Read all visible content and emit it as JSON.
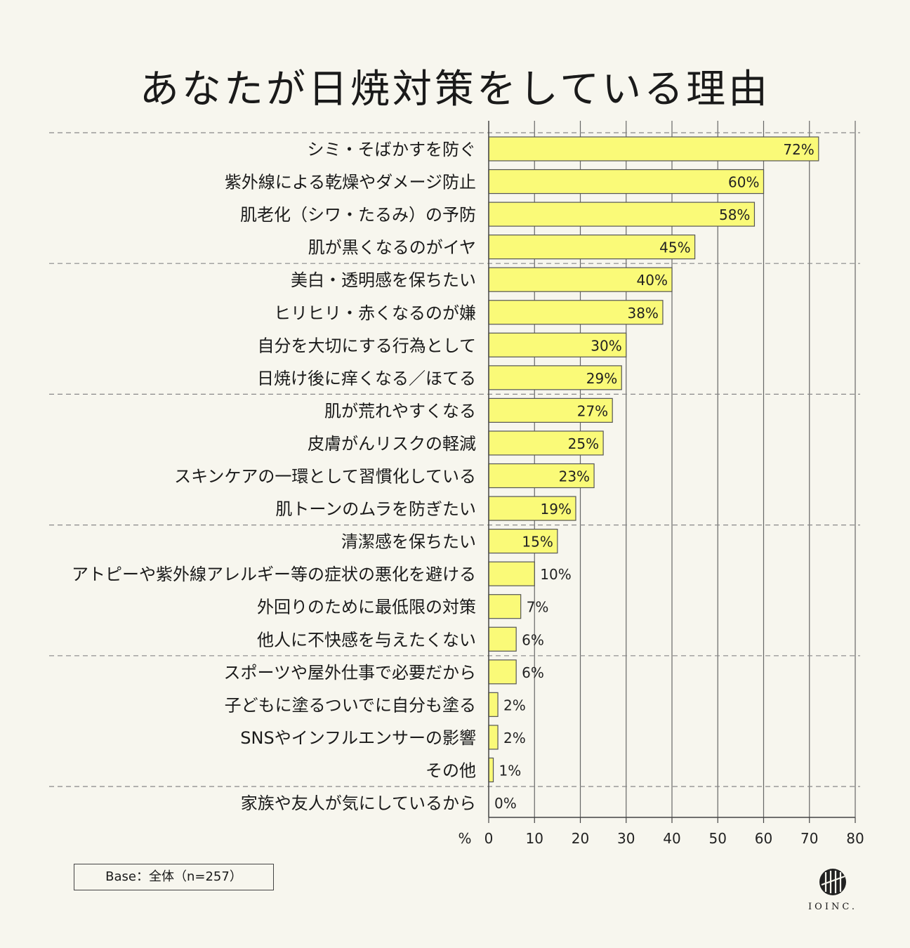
{
  "chart_data": {
    "type": "bar",
    "orientation": "horizontal",
    "title": "あなたが日焼対策をしている理由",
    "categories": [
      "シミ・そばかすを防ぐ",
      "紫外線による乾燥やダメージ防止",
      "肌老化（シワ・たるみ）の予防",
      "肌が黒くなるのがイヤ",
      "美白・透明感を保ちたい",
      "ヒリヒリ・赤くなるのが嫌",
      "自分を大切にする行為として",
      "日焼け後に痒くなる／ほてる",
      "肌が荒れやすくなる",
      "皮膚がんリスクの軽減",
      "スキンケアの一環として習慣化している",
      "肌トーンのムラを防ぎたい",
      "清潔感を保ちたい",
      "アトピーや紫外線アレルギー等の症状の悪化を避ける",
      "外回りのために最低限の対策",
      "他人に不快感を与えたくない",
      "スポーツや屋外仕事で必要だから",
      "子どもに塗るついでに自分も塗る",
      "SNSやインフルエンサーの影響",
      "その他",
      "家族や友人が気にしているから"
    ],
    "values": [
      72,
      60,
      58,
      45,
      40,
      38,
      30,
      29,
      27,
      25,
      23,
      19,
      15,
      10,
      7,
      6,
      6,
      2,
      2,
      1,
      0
    ],
    "value_labels": [
      "72%",
      "60%",
      "58%",
      "45%",
      "40%",
      "38%",
      "30%",
      "29%",
      "27%",
      "25%",
      "23%",
      "19%",
      "15%",
      "10%",
      "7%",
      "6%",
      "6%",
      "2%",
      "2%",
      "1%",
      "0%"
    ],
    "xlim": [
      0,
      80
    ],
    "xticks": [
      "0",
      "10",
      "20",
      "30",
      "40",
      "50",
      "60",
      "70",
      "80"
    ],
    "xunit": "%",
    "grid": true,
    "bar_color": "#fafa78",
    "bar_edge_color": "#555555"
  },
  "footer": {
    "base_note": "Base：全体（n=257）",
    "logo_text": "IOINC."
  }
}
